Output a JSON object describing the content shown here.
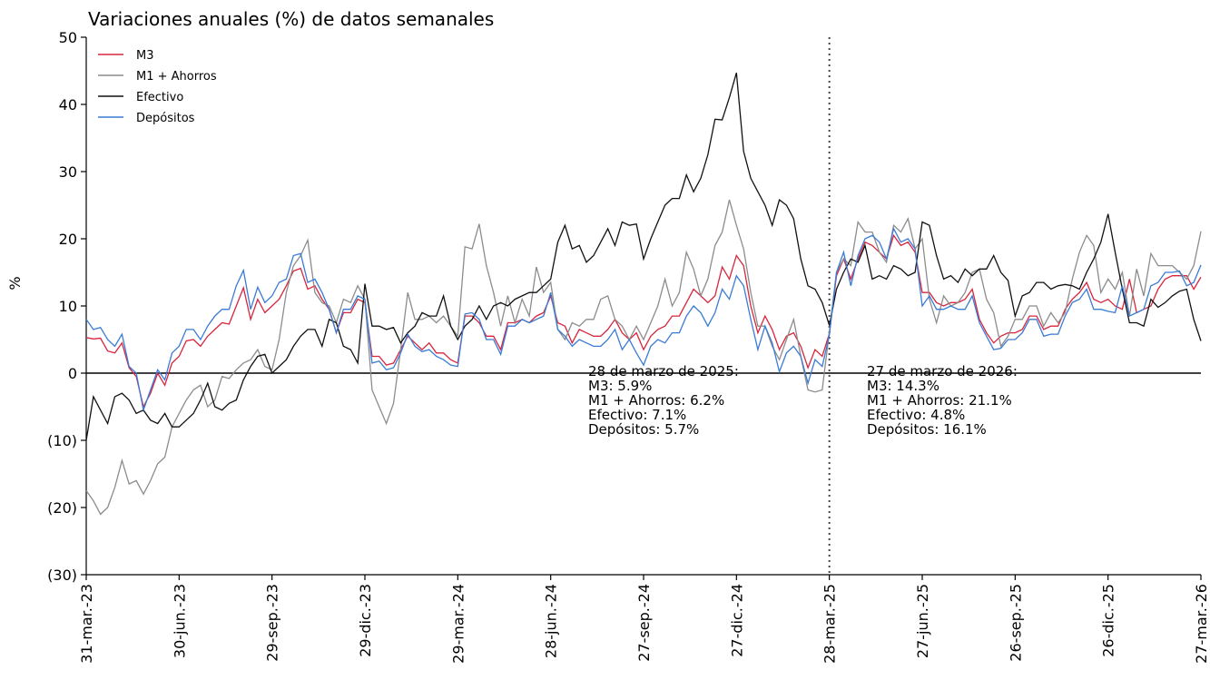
{
  "chart_data": {
    "type": "line",
    "title": "Variaciones anuales (%) de datos semanales",
    "y_label": "%",
    "categories": [
      "31-mar.-23",
      null,
      null,
      null,
      null,
      null,
      null,
      null,
      null,
      null,
      null,
      null,
      null,
      "30-jun.-23",
      null,
      null,
      null,
      null,
      null,
      null,
      null,
      null,
      null,
      null,
      null,
      null,
      "29-sep.-23",
      null,
      null,
      null,
      null,
      null,
      null,
      null,
      null,
      null,
      null,
      null,
      null,
      "29-dic.-23",
      null,
      null,
      null,
      null,
      null,
      null,
      null,
      null,
      null,
      null,
      null,
      null,
      "29-mar.-24",
      null,
      null,
      null,
      null,
      null,
      null,
      null,
      null,
      null,
      null,
      null,
      null,
      "28-jun.-24",
      null,
      null,
      null,
      null,
      null,
      null,
      null,
      null,
      null,
      null,
      null,
      null,
      "27-sep.-24",
      null,
      null,
      null,
      null,
      null,
      null,
      null,
      null,
      null,
      null,
      null,
      null,
      "27-dic.-24",
      null,
      null,
      null,
      null,
      null,
      null,
      null,
      null,
      null,
      null,
      null,
      null,
      "28-mar.-25",
      null,
      null,
      null,
      null,
      null,
      null,
      null,
      null,
      null,
      null,
      null,
      null,
      "27-jun.-25",
      null,
      null,
      null,
      null,
      null,
      null,
      null,
      null,
      null,
      null,
      null,
      null,
      "26-sep.-25",
      null,
      null,
      null,
      null,
      null,
      null,
      null,
      null,
      null,
      null,
      null,
      null,
      "26-dic.-25",
      null,
      null,
      null,
      null,
      null,
      null,
      null,
      null,
      null,
      null,
      null,
      null,
      "27-mar.-26"
    ],
    "series": [
      {
        "name": "M3",
        "color": "#d7263d",
        "values": [
          5.3,
          5.1,
          5.2,
          3.3,
          3.0,
          4.5,
          0.8,
          -0.5,
          -5,
          -3,
          0,
          -1.8,
          1.5,
          2.5,
          4.8,
          5.0,
          4.0,
          5.5,
          6.5,
          7.5,
          7.3,
          10,
          12.7,
          8,
          11,
          9,
          10,
          11,
          13,
          15.2,
          15.6,
          12.5,
          13,
          11,
          9.5,
          6,
          9,
          9,
          11,
          10.5,
          2.5,
          2.5,
          1.2,
          1.5,
          3.5,
          5.5,
          4.5,
          3.5,
          4.5,
          3,
          3,
          2,
          1.5,
          8.5,
          8.5,
          7.5,
          5.5,
          5.5,
          3.5,
          7.5,
          7.5,
          8,
          7.5,
          8.5,
          9,
          11.5,
          7.5,
          7,
          4.5,
          6.5,
          6,
          5.5,
          5.5,
          6.5,
          8,
          6,
          5,
          6,
          3.5,
          5.5,
          6.5,
          7,
          8.5,
          8.5,
          10.5,
          12.5,
          11.5,
          10.5,
          11.5,
          15.8,
          14,
          17.5,
          16,
          10,
          6,
          8.5,
          6.5,
          3.5,
          5.5,
          6,
          4,
          0.8,
          3.5,
          2.5,
          5.9,
          14.5,
          17,
          14,
          17,
          19.5,
          19,
          18,
          17,
          20.5,
          19,
          19.5,
          18,
          12,
          12,
          10.5,
          10,
          10.5,
          10.5,
          11,
          12.5,
          8,
          6,
          4.5,
          5.5,
          6,
          6,
          6.5,
          8.5,
          8.5,
          6.5,
          7,
          7,
          9.5,
          11,
          12,
          13.5,
          11,
          10.5,
          11,
          10,
          9.5,
          14,
          9,
          9.5,
          10,
          12.5,
          14,
          14.5,
          14.5,
          14.5,
          12.5,
          14.3
        ]
      },
      {
        "name": "M1 + Ahorros",
        "color": "#8c8c8c",
        "values": [
          -17.5,
          -19,
          -21,
          -20,
          -17,
          -13,
          -16.5,
          -16,
          -18,
          -16,
          -13.5,
          -12.5,
          -8,
          -6,
          -4,
          -2.5,
          -1.8,
          -5,
          -4,
          -0.5,
          -0.8,
          0.5,
          1.5,
          2,
          3.5,
          1,
          0.5,
          5,
          12,
          16,
          17.5,
          19.8,
          12,
          10.5,
          10,
          7.5,
          11,
          10.5,
          13,
          11,
          -2.5,
          -5,
          -7.5,
          -4.5,
          3.5,
          12,
          8,
          8,
          8.5,
          7.5,
          8.5,
          7,
          5.5,
          18.8,
          18.5,
          22.2,
          16,
          12,
          7,
          11.5,
          7.5,
          11,
          8.5,
          15.8,
          12,
          13.5,
          6.5,
          5,
          7.5,
          7,
          8,
          8,
          11,
          11.5,
          8,
          7,
          5,
          7,
          5,
          7.5,
          10,
          14,
          10,
          12,
          18,
          15.5,
          11.5,
          14,
          19,
          21,
          25.8,
          22,
          18.5,
          12,
          7,
          7,
          4,
          2,
          5,
          8,
          2.5,
          -2.5,
          -2.8,
          -2.5,
          6.2,
          15,
          17,
          16,
          22.5,
          21,
          21,
          18,
          16.5,
          22,
          21,
          23,
          18.5,
          20,
          11,
          7.5,
          11.5,
          10,
          10.5,
          12,
          15,
          15.5,
          11,
          9,
          4,
          5.5,
          8,
          8,
          10,
          10,
          7,
          9,
          7.5,
          9,
          14,
          18,
          20.5,
          19,
          12,
          14,
          12.5,
          15,
          8.5,
          15.5,
          11.5,
          17.8,
          16,
          16,
          16,
          15,
          14,
          16,
          21.1
        ]
      },
      {
        "name": "Efectivo",
        "color": "#111111",
        "values": [
          -10,
          -3.5,
          -5.5,
          -7.5,
          -3.5,
          -3,
          -4,
          -6,
          -5.5,
          -7,
          -7.5,
          -6,
          -8,
          -8,
          -7,
          -6,
          -4,
          -1.5,
          -5,
          -5.5,
          -4.5,
          -4,
          -1,
          1,
          2.5,
          2.8,
          0,
          1,
          2,
          4,
          5.5,
          6.5,
          6.5,
          4,
          8,
          7.5,
          4,
          3.5,
          1.5,
          13.3,
          7,
          7,
          6.5,
          6.8,
          4.5,
          6,
          7,
          9,
          8.5,
          8.5,
          11.5,
          7,
          5,
          7,
          8,
          10,
          8,
          10,
          10.5,
          10,
          11,
          11.5,
          12,
          12,
          13,
          14,
          19.5,
          22,
          18.5,
          19,
          16.5,
          17.5,
          19.5,
          21.5,
          19,
          22.5,
          22,
          22.2,
          17,
          20,
          22.5,
          25,
          26,
          26,
          29.5,
          27,
          29,
          32.5,
          37.8,
          37.7,
          41,
          44.7,
          33,
          29,
          27,
          25,
          22,
          25.8,
          25,
          23,
          17,
          13,
          12.5,
          10.5,
          7.1,
          12.5,
          15,
          17,
          16.5,
          19,
          14,
          14.5,
          14,
          16,
          15.5,
          14.5,
          15,
          22.5,
          22,
          17.5,
          14,
          14.5,
          13.5,
          15.5,
          14.5,
          15.5,
          15.5,
          17.5,
          15,
          13.8,
          8.5,
          11.5,
          12,
          13.5,
          13.5,
          12.5,
          13,
          13.2,
          13,
          12.5,
          15,
          17,
          19.5,
          23.7,
          18,
          12.5,
          7.5,
          7.5,
          7,
          11,
          9.8,
          10.5,
          11.5,
          12.2,
          12.5,
          8,
          4.8
        ]
      },
      {
        "name": "Depósitos",
        "color": "#3a7bd5",
        "values": [
          8,
          6.5,
          6.8,
          5,
          4,
          5.8,
          1,
          0,
          -5.5,
          -2.5,
          0.5,
          -1,
          3,
          4,
          6.5,
          6.5,
          5,
          7,
          8.5,
          9.5,
          9.5,
          13,
          15.3,
          9.5,
          12.8,
          10.5,
          11.5,
          13.5,
          14,
          17.5,
          17.8,
          13.5,
          14,
          12,
          9.5,
          6,
          9.5,
          9.5,
          11.5,
          11,
          1.5,
          1.8,
          0.5,
          0.8,
          3,
          5.8,
          4,
          3.2,
          3.5,
          2.5,
          2,
          1.2,
          1,
          8.8,
          9,
          8,
          5,
          5,
          2.8,
          7,
          7,
          8,
          7.5,
          8,
          8.5,
          12,
          6.5,
          5.5,
          4,
          5,
          4.5,
          4,
          4,
          5,
          6.5,
          3.5,
          5,
          3,
          1.2,
          4,
          5,
          4.5,
          6,
          6,
          8.5,
          10,
          9,
          7,
          9,
          12.5,
          11,
          14.5,
          13,
          8,
          3.5,
          7,
          4.5,
          0.2,
          3,
          4,
          2.5,
          -1.5,
          2,
          1,
          5.7,
          15,
          18,
          13,
          17.5,
          20,
          20.5,
          19.5,
          17,
          21.5,
          19.5,
          20,
          18.5,
          10,
          11.5,
          9.5,
          9.5,
          10,
          9.5,
          9.5,
          11.5,
          7.5,
          5.5,
          3.5,
          3.7,
          5,
          5,
          6,
          8,
          8,
          5.5,
          5.8,
          5.8,
          8.5,
          10.5,
          11,
          12.5,
          9.5,
          9.5,
          9.2,
          9,
          13,
          8.5,
          9,
          9.5,
          13,
          13.5,
          15,
          15,
          15.2,
          13,
          13.5,
          16.1
        ]
      }
    ],
    "ylim": [
      -30,
      50
    ],
    "yticks": [
      {
        "value": -30,
        "label": "(30)"
      },
      {
        "value": -20,
        "label": "(20)"
      },
      {
        "value": -10,
        "label": "(10)"
      },
      0,
      10,
      20,
      30,
      40,
      50
    ],
    "vline": "28-mar.-25",
    "legend": "upper left",
    "annotations": [
      {
        "lines": [
          "28 de marzo de 2025:",
          "M3:  5.9%",
          "M1 + Ahorros:  6.2%",
          "Efectivo:  7.1%",
          "Depósitos:  5.7%"
        ]
      },
      {
        "lines": [
          "27 de marzo de 2026:",
          "M3:  14.3%",
          "M1 + Ahorros:  21.1%",
          "Efectivo:  4.8%",
          "Depósitos:  16.1%"
        ]
      }
    ]
  }
}
